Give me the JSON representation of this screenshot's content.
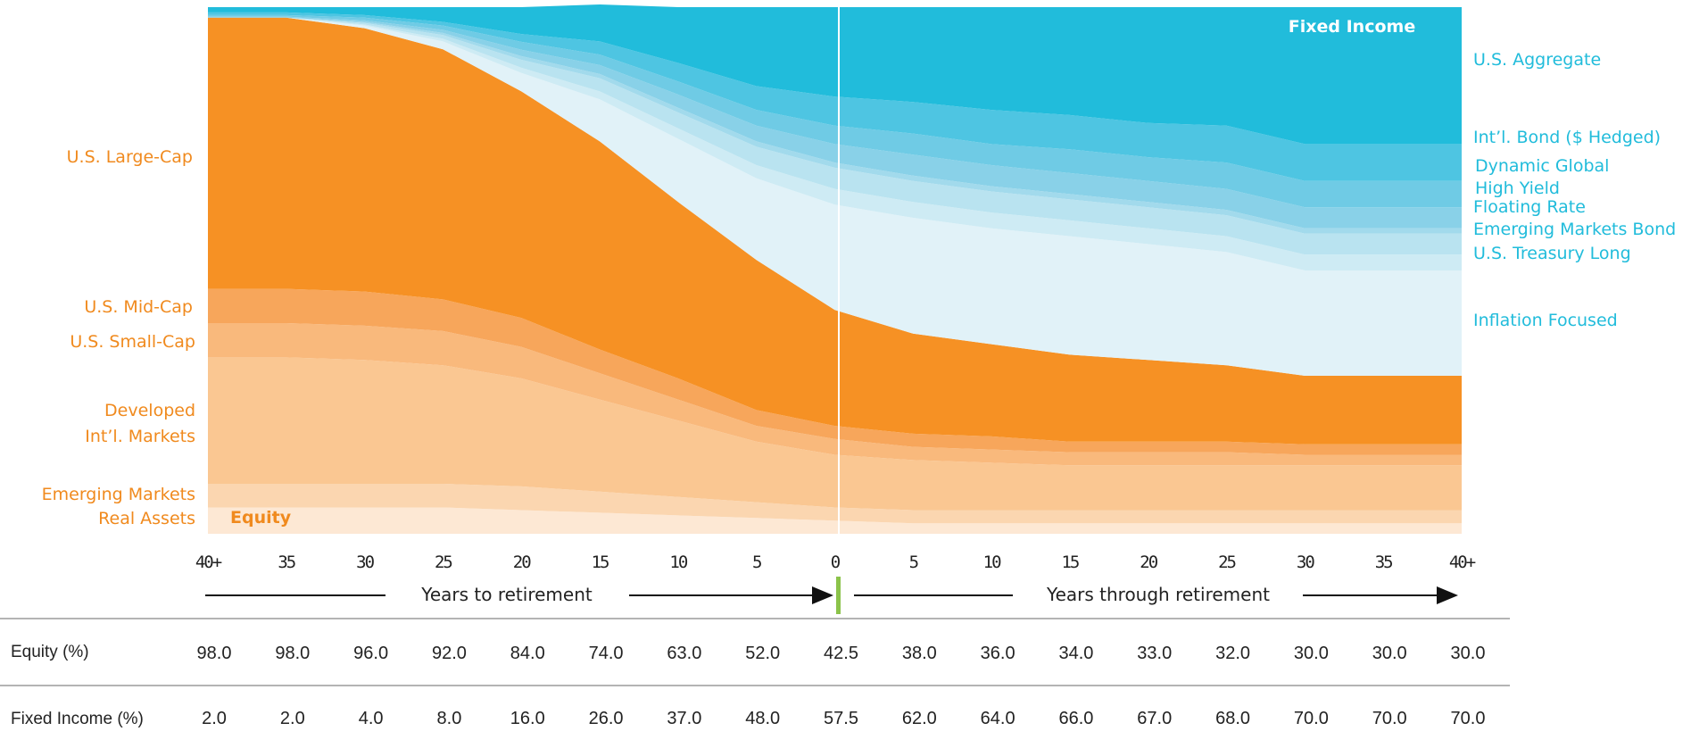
{
  "colors": {
    "us_large_cap": "#F69124",
    "us_mid_cap": "#F7A65B",
    "us_small_cap": "#F9B97C",
    "developed_intl": "#FAC792",
    "emerging_markets": "#FBD6B0",
    "real_assets": "#FDE8D4",
    "inflation_focused": "#E1F2F8",
    "us_treasury_long": "#CEEBF4",
    "emerging_markets_bond": "#B9E3F0",
    "floating_rate": "#A2DAEC",
    "high_yield": "#89D1E8",
    "dynamic_global": "#6FCBE5",
    "intl_bond_hedged": "#4EC5E2",
    "us_aggregate": "#21BCDB",
    "equity_text": "#F08A1E",
    "fixed_income_text": "#21BCDB",
    "retirement_marker": "#8BC34A"
  },
  "chart_data": {
    "type": "area",
    "stacked": true,
    "x": [
      "40+",
      "35",
      "30",
      "25",
      "20",
      "15",
      "10",
      "5",
      "0",
      "5",
      "10",
      "15",
      "20",
      "25",
      "30",
      "35",
      "40+"
    ],
    "ylim": [
      0,
      100
    ],
    "series_equity": [
      {
        "name": "Real Assets",
        "values": [
          5,
          5,
          5,
          5,
          4.5,
          4,
          3.5,
          3,
          2.5,
          2,
          2,
          2,
          2,
          2,
          2,
          2,
          2
        ]
      },
      {
        "name": "Emerging Markets",
        "values": [
          4.5,
          4.5,
          4.5,
          4.5,
          4.5,
          4,
          3.5,
          3,
          2.5,
          2.5,
          2.5,
          2.5,
          2.5,
          2.5,
          2.5,
          2.5,
          2.5
        ]
      },
      {
        "name": "Developed Int'l. Markets",
        "values": [
          24,
          24,
          23.5,
          22.5,
          20.5,
          17.5,
          14.5,
          11.5,
          10,
          9.5,
          9,
          8.5,
          8.5,
          8.5,
          8.5,
          8.5,
          8.5
        ]
      },
      {
        "name": "U.S. Small-Cap",
        "values": [
          6.5,
          6.5,
          6.5,
          6.5,
          6,
          5,
          4,
          3,
          3,
          2.5,
          2.5,
          2.5,
          2.5,
          2.5,
          2,
          2,
          2
        ]
      },
      {
        "name": "U.S. Mid-Cap",
        "values": [
          6.5,
          6.5,
          6.5,
          6,
          5.5,
          4.5,
          4,
          3,
          2.5,
          2.5,
          2.5,
          2,
          2,
          2,
          2,
          2,
          2
        ]
      },
      {
        "name": "U.S. Large-Cap",
        "values": [
          51.5,
          51.5,
          50,
          47.5,
          43,
          39.5,
          33.5,
          28.5,
          22,
          19,
          17.5,
          16.5,
          15.5,
          14.5,
          13,
          13,
          13
        ]
      }
    ],
    "series_fixed_income": [
      {
        "name": "Inflation Focused",
        "values": [
          0,
          0,
          0.5,
          1.5,
          3.5,
          8,
          12,
          15.5,
          20,
          22,
          22,
          22.5,
          22,
          21.5,
          20,
          20,
          20
        ]
      },
      {
        "name": "U.S. Treasury Long",
        "values": [
          0,
          0,
          0.2,
          0.5,
          1,
          1.5,
          2,
          2.5,
          3,
          3,
          3,
          3,
          3,
          3,
          3,
          3,
          3
        ]
      },
      {
        "name": "Emerging Markets Bond",
        "values": [
          0,
          0,
          0.3,
          0.7,
          1.5,
          2.5,
          3,
          3.5,
          4,
          4,
          4,
          4,
          4,
          4,
          4,
          4,
          4
        ]
      },
      {
        "name": "Floating Rate",
        "values": [
          0,
          0,
          0.2,
          0.4,
          0.7,
          0.8,
          0.9,
          1,
          1,
          1,
          1,
          1,
          1,
          1,
          1,
          1,
          1
        ]
      },
      {
        "name": "High Yield",
        "values": [
          0.2,
          0.2,
          0.3,
          0.6,
          1.2,
          1.7,
          2.5,
          3,
          3.5,
          4,
          4,
          4,
          4,
          4,
          4,
          4,
          4
        ]
      },
      {
        "name": "Dynamic Global",
        "values": [
          0.3,
          0.3,
          0.5,
          0.8,
          1.5,
          2,
          2.5,
          3,
          3.5,
          4,
          4,
          4.5,
          4.5,
          5,
          5,
          5,
          5
        ]
      },
      {
        "name": "Int'l. Bond ($ Hedged)",
        "values": [
          0.5,
          0.5,
          0.5,
          0.7,
          1.5,
          2.5,
          3.5,
          4.5,
          5.5,
          6,
          6.5,
          6.5,
          6.5,
          7,
          7,
          7,
          7
        ]
      },
      {
        "name": "U.S. Aggregate",
        "values": [
          1,
          1,
          1.5,
          2.8,
          5.1,
          7,
          10.6,
          15,
          17,
          18,
          19.5,
          20.5,
          22,
          22.5,
          26,
          26,
          26
        ]
      }
    ],
    "left_labels": [
      "U.S. Large-Cap",
      "U.S. Mid-Cap",
      "U.S. Small-Cap",
      "Developed",
      "Int’l. Markets",
      "Emerging Markets",
      "Real Assets"
    ],
    "right_labels": [
      "U.S. Aggregate",
      "Int’l. Bond ($ Hedged)",
      "Dynamic Global",
      "High Yield",
      "Floating Rate",
      "Emerging Markets Bond",
      "U.S. Treasury Long",
      "Inflation Focused"
    ],
    "equity_label": "Equity",
    "fixed_income_label": "Fixed Income",
    "retirement_index": 8
  },
  "captions": {
    "to_retirement": "Years to retirement",
    "through_retirement": "Years through retirement"
  },
  "table": {
    "rows": [
      {
        "label": "Equity (%)",
        "values": [
          "98.0",
          "98.0",
          "96.0",
          "92.0",
          "84.0",
          "74.0",
          "63.0",
          "52.0",
          "42.5",
          "38.0",
          "36.0",
          "34.0",
          "33.0",
          "32.0",
          "30.0",
          "30.0",
          "30.0"
        ]
      },
      {
        "label": "Fixed Income (%)",
        "values": [
          "2.0",
          "2.0",
          "4.0",
          "8.0",
          "16.0",
          "26.0",
          "37.0",
          "48.0",
          "57.5",
          "62.0",
          "64.0",
          "66.0",
          "67.0",
          "68.0",
          "70.0",
          "70.0",
          "70.0"
        ]
      }
    ]
  }
}
